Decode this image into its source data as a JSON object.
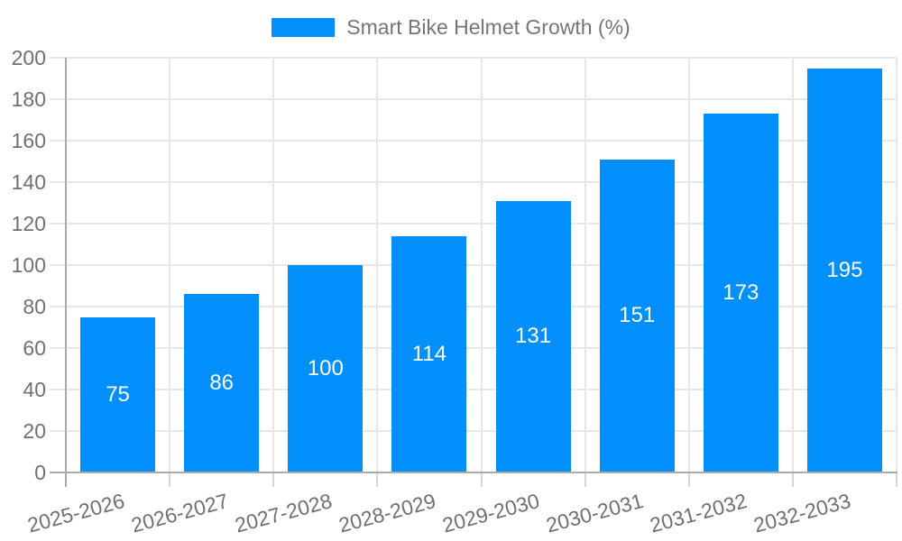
{
  "chart_data": {
    "type": "bar",
    "title": "Smart Bike Helmet Growth (%)",
    "categories": [
      "2025-2026",
      "2026-2027",
      "2027-2028",
      "2028-2029",
      "2029-2030",
      "2030-2031",
      "2031-2032",
      "2032-2033"
    ],
    "series": [
      {
        "name": "Smart Bike Helmet Growth (%)",
        "values": [
          75,
          86,
          100,
          114,
          131,
          151,
          173,
          195
        ]
      }
    ],
    "xlabel": "",
    "ylabel": "",
    "ylim": [
      0,
      200
    ],
    "ytick_step": 20,
    "yticks": [
      0,
      20,
      40,
      60,
      80,
      100,
      120,
      140,
      160,
      180,
      200
    ],
    "grid": true,
    "legend_position": "top",
    "value_label_position": "inside-center",
    "x_label_rotation_deg": -15,
    "colors": {
      "bar": "#008FFB",
      "bar_label": "#FFFFFF",
      "axis_text": "#707070",
      "legend_text": "#757575",
      "gridline": "#E7E7E7",
      "tick": "#D6D6D6",
      "axis_line": "#ABABAB",
      "background": "#FFFFFF"
    }
  }
}
